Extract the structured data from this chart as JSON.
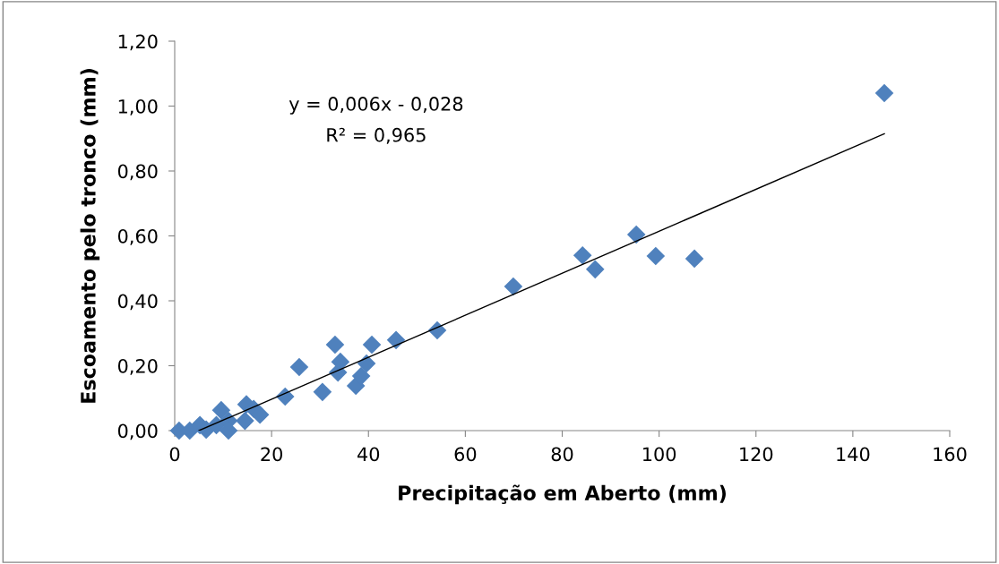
{
  "chart_data": {
    "type": "scatter",
    "xlabel": "Precipitação em Aberto (mm)",
    "ylabel": "Escoamento pelo tronco (mm)",
    "annotations": [
      "y = 0,006x - 0,028",
      "R² = 0,965"
    ],
    "xlim": [
      0,
      160
    ],
    "xticks": [
      0,
      20,
      40,
      60,
      80,
      100,
      120,
      140,
      160
    ],
    "ylim": [
      0,
      1.2
    ],
    "yticks": [
      {
        "value": 0,
        "label": "0,00"
      },
      {
        "value": 0.2,
        "label": "0,20"
      },
      {
        "value": 0.4,
        "label": "0,40"
      },
      {
        "value": 0.6,
        "label": "0,60"
      },
      {
        "value": 0.8,
        "label": "0,80"
      },
      {
        "value": 1.0,
        "label": "1,00"
      },
      {
        "value": 1.2,
        "label": "1,20"
      }
    ],
    "grid": false,
    "legend": false,
    "series": [
      {
        "marker": "diamond",
        "color": "#4f81bd",
        "x": [
          0.9,
          3.1,
          5.2,
          6.5,
          8.6,
          9.6,
          11.1,
          11.1,
          14.5,
          14.8,
          16.3,
          17.6,
          22.8,
          25.7,
          30.5,
          33.1,
          33.7,
          34.2,
          37.4,
          38.5,
          39.6,
          40.7,
          45.7,
          54.2,
          69.9,
          84.2,
          86.8,
          95.3,
          99.3,
          107.3,
          146.5
        ],
        "values": [
          0.0,
          0.0,
          0.017,
          0.003,
          0.017,
          0.063,
          0.03,
          0.0,
          0.03,
          0.081,
          0.067,
          0.049,
          0.105,
          0.196,
          0.119,
          0.265,
          0.179,
          0.212,
          0.138,
          0.168,
          0.207,
          0.265,
          0.279,
          0.309,
          0.444,
          0.54,
          0.497,
          0.604,
          0.538,
          0.53,
          1.04
        ]
      },
      {
        "type": "line",
        "color": "#000000",
        "line_style": "solid",
        "marker": "none",
        "x": [
          5.0,
          146.5
        ],
        "values": [
          0.0,
          0.915
        ]
      }
    ]
  }
}
